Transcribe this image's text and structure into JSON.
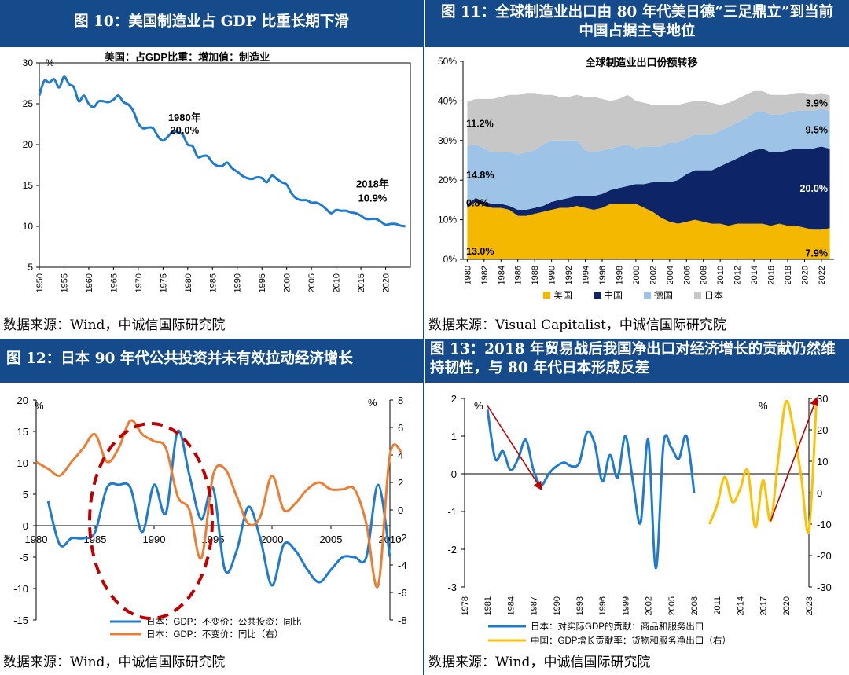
{
  "panels": [
    {
      "id": "fig10",
      "header": "图 10：美国制造业占 GDP 比重长期下滑",
      "source": "数据来源：Wind，中诚信国际研究院"
    },
    {
      "id": "fig11",
      "header": "图 11：全球制造业出口由 80 年代美日德“三足鼎立”到当前中国占据主导地位",
      "source": "数据来源：Visual Capitalist，中诚信国际研究院"
    },
    {
      "id": "fig12",
      "header": "图 12：日本 90 年代公共投资并未有效拉动经济增长",
      "source": "数据来源：Wind，中诚信国际研究院"
    },
    {
      "id": "fig13",
      "header": "图 13：2018 年贸易战后我国净出口对经济增长的贡献仍然维持韧性，与 80 年代日本形成反差",
      "source": "数据来源：Wind，中诚信国际研究院"
    }
  ],
  "chart_data": [
    {
      "type": "line",
      "title": "美国：占GDP比重：增加值：制造业",
      "ylabel": "%",
      "ylim": [
        5,
        30
      ],
      "yticks": [
        5,
        10,
        15,
        20,
        25,
        30
      ],
      "xlim": [
        1950,
        2025
      ],
      "xticks": [
        1950,
        1955,
        1960,
        1965,
        1970,
        1975,
        1980,
        1985,
        1990,
        1995,
        2000,
        2005,
        2010,
        2015,
        2020
      ],
      "color": "#1f7bd0",
      "x": [
        1950,
        1951,
        1952,
        1953,
        1954,
        1955,
        1956,
        1957,
        1958,
        1959,
        1960,
        1961,
        1962,
        1963,
        1964,
        1965,
        1966,
        1967,
        1968,
        1969,
        1970,
        1971,
        1972,
        1973,
        1974,
        1975,
        1976,
        1977,
        1978,
        1979,
        1980,
        1981,
        1982,
        1983,
        1984,
        1985,
        1986,
        1987,
        1988,
        1989,
        1990,
        1991,
        1992,
        1993,
        1994,
        1995,
        1996,
        1997,
        1998,
        1999,
        2000,
        2001,
        2002,
        2003,
        2004,
        2005,
        2006,
        2007,
        2008,
        2009,
        2010,
        2011,
        2012,
        2013,
        2014,
        2015,
        2016,
        2017,
        2018,
        2019,
        2020,
        2021,
        2022,
        2023,
        2024
      ],
      "values": [
        26.0,
        27.8,
        27.6,
        28.0,
        27.0,
        28.3,
        27.4,
        27.0,
        25.3,
        26.0,
        25.0,
        24.6,
        25.3,
        25.3,
        25.2,
        25.5,
        26.0,
        25.2,
        24.9,
        24.1,
        22.6,
        22.0,
        22.1,
        22.0,
        21.0,
        20.5,
        21.0,
        21.6,
        21.5,
        21.2,
        20.0,
        19.8,
        18.5,
        18.6,
        18.6,
        17.8,
        17.4,
        17.4,
        17.8,
        17.1,
        16.7,
        16.2,
        15.9,
        15.8,
        16.0,
        15.9,
        15.4,
        16.2,
        15.8,
        15.4,
        15.1,
        14.0,
        13.4,
        13.2,
        13.2,
        12.9,
        12.9,
        12.6,
        12.1,
        11.6,
        12.0,
        11.9,
        11.9,
        11.7,
        11.6,
        11.3,
        10.9,
        10.9,
        10.9,
        10.6,
        10.2,
        10.3,
        10.3,
        10.1,
        10.0
      ],
      "annotations": [
        {
          "label": "1980年",
          "value_label": "20.0%",
          "x": 1980,
          "y": 20.0
        },
        {
          "label": "2018年",
          "value_label": "10.9%",
          "x": 2018,
          "y": 10.9
        }
      ]
    },
    {
      "type": "area",
      "stacked": true,
      "title": "全球制造业出口份额转移",
      "ylim": [
        0,
        50
      ],
      "yticks": [
        "0%",
        "10%",
        "20%",
        "30%",
        "40%",
        "50%"
      ],
      "x": [
        1980,
        1981,
        1982,
        1983,
        1984,
        1985,
        1986,
        1987,
        1988,
        1989,
        1990,
        1991,
        1992,
        1993,
        1994,
        1995,
        1996,
        1997,
        1998,
        1999,
        2000,
        2001,
        2002,
        2003,
        2004,
        2005,
        2006,
        2007,
        2008,
        2009,
        2010,
        2011,
        2012,
        2013,
        2014,
        2015,
        2016,
        2017,
        2018,
        2019,
        2020,
        2021,
        2022,
        2023
      ],
      "xticks": [
        1980,
        1982,
        1984,
        1986,
        1988,
        1990,
        1992,
        1994,
        1996,
        1998,
        2000,
        2002,
        2004,
        2006,
        2008,
        2010,
        2012,
        2014,
        2016,
        2018,
        2020,
        2022
      ],
      "series": [
        {
          "name": "美国",
          "color": "#f5b800",
          "values": [
            13.0,
            14.5,
            13.5,
            13.0,
            13.0,
            12.5,
            11.0,
            11.0,
            11.5,
            12.0,
            12.5,
            13.0,
            13.0,
            13.5,
            13.0,
            12.5,
            13.0,
            14.0,
            14.0,
            14.0,
            14.0,
            13.0,
            12.0,
            10.5,
            9.5,
            9.0,
            9.5,
            10.0,
            9.5,
            9.0,
            9.0,
            8.5,
            9.0,
            9.0,
            9.0,
            9.0,
            8.5,
            9.0,
            8.5,
            8.5,
            8.0,
            7.5,
            7.5,
            7.9
          ]
        },
        {
          "name": "中国",
          "color": "#0d2467",
          "values": [
            0.8,
            1.0,
            1.0,
            1.0,
            1.0,
            1.0,
            1.5,
            1.5,
            1.5,
            1.5,
            2.0,
            2.0,
            2.5,
            2.5,
            3.0,
            3.5,
            3.5,
            3.5,
            4.0,
            4.5,
            5.0,
            6.0,
            7.5,
            9.0,
            10.0,
            11.0,
            12.0,
            12.5,
            13.0,
            13.5,
            14.5,
            16.0,
            16.5,
            17.5,
            18.5,
            19.0,
            18.5,
            18.0,
            19.0,
            19.5,
            20.0,
            20.5,
            21.0,
            20.0
          ]
        },
        {
          "name": "德国",
          "color": "#9dc3e6",
          "values": [
            14.8,
            13.5,
            13.5,
            13.0,
            13.0,
            13.5,
            14.0,
            14.5,
            14.5,
            15.5,
            15.5,
            15.0,
            14.5,
            14.0,
            11.5,
            11.0,
            11.0,
            10.5,
            10.5,
            10.5,
            9.0,
            9.5,
            9.0,
            9.0,
            10.0,
            9.5,
            9.0,
            9.0,
            9.0,
            9.0,
            9.0,
            9.0,
            9.0,
            9.0,
            9.5,
            9.5,
            9.5,
            9.5,
            9.5,
            9.5,
            9.5,
            9.5,
            9.5,
            9.5
          ]
        },
        {
          "name": "日本",
          "color": "#c7c7c7",
          "values": [
            11.2,
            11.5,
            12.5,
            13.5,
            14.0,
            14.5,
            15.0,
            15.0,
            14.5,
            12.5,
            11.5,
            11.0,
            11.0,
            11.5,
            13.5,
            14.0,
            13.0,
            12.0,
            12.0,
            12.5,
            12.0,
            11.0,
            10.5,
            10.5,
            9.5,
            9.5,
            9.0,
            8.5,
            8.5,
            8.0,
            6.5,
            6.0,
            6.0,
            6.0,
            5.5,
            5.0,
            5.0,
            5.0,
            4.5,
            4.5,
            4.5,
            4.0,
            4.0,
            3.9
          ]
        }
      ],
      "value_labels": [
        {
          "text": "13.0%",
          "series": "美国",
          "x": 1980
        },
        {
          "text": "0.8%",
          "series": "中国",
          "x": 1980
        },
        {
          "text": "14.8%",
          "series": "德国",
          "x": 1980
        },
        {
          "text": "11.2%",
          "series": "日本",
          "x": 1980
        },
        {
          "text": "7.9%",
          "series": "美国",
          "x": 2023
        },
        {
          "text": "20.0%",
          "series": "中国",
          "x": 2023
        },
        {
          "text": "9.5%",
          "series": "德国",
          "x": 2023
        },
        {
          "text": "3.9%",
          "series": "日本",
          "x": 2023
        }
      ],
      "legend": "bottom"
    },
    {
      "type": "line",
      "dual_axis": true,
      "left_unit": "%",
      "right_unit": "%",
      "ylim_left": [
        -15,
        20
      ],
      "yticks_left": [
        -15,
        -10,
        -5,
        0,
        5,
        10,
        15,
        20
      ],
      "ylim_right": [
        -8,
        8
      ],
      "yticks_right": [
        -8,
        -6,
        -4,
        -2,
        0,
        2,
        4,
        6,
        8
      ],
      "xlim": [
        1980,
        2010
      ],
      "xticks": [
        1980,
        1985,
        1990,
        1995,
        2000,
        2005,
        2010
      ],
      "series": [
        {
          "name": "日本：GDP：不变价：公共投资：同比",
          "axis": "left",
          "color": "#1f7bd0",
          "x": [
            1981,
            1982,
            1983,
            1984,
            1985,
            1986,
            1987,
            1988,
            1989,
            1990,
            1991,
            1992,
            1993,
            1994,
            1995,
            1996,
            1997,
            1998,
            1999,
            2000,
            2001,
            2002,
            2003,
            2004,
            2005,
            2006,
            2007,
            2008,
            2009,
            2010
          ],
          "values": [
            4.0,
            -3.0,
            -2.0,
            -2.0,
            -1.0,
            6.0,
            6.5,
            6.0,
            -1.0,
            6.5,
            2.0,
            15.0,
            8.0,
            1.0,
            6.0,
            -7.0,
            -4.0,
            3.0,
            -2.0,
            -9.5,
            -3.0,
            -4.0,
            -7.0,
            -9.0,
            -7.0,
            -5.0,
            -5.0,
            -5.0,
            6.5,
            -5.0
          ]
        },
        {
          "name": "日本：GDP：不变价：同比（右）",
          "axis": "right",
          "color": "#ed7d31",
          "x": [
            1980,
            1981,
            1982,
            1983,
            1984,
            1985,
            1986,
            1987,
            1988,
            1989,
            1990,
            1991,
            1992,
            1993,
            1994,
            1995,
            1996,
            1997,
            1998,
            1999,
            2000,
            2001,
            2002,
            2003,
            2004,
            2005,
            2006,
            2007,
            2008,
            2009,
            2010,
            2011
          ],
          "values": [
            3.5,
            3.0,
            2.5,
            3.5,
            4.5,
            5.5,
            3.5,
            4.5,
            6.5,
            5.5,
            5.0,
            4.5,
            1.0,
            0.0,
            -3.5,
            2.5,
            3.0,
            1.0,
            -1.0,
            -0.5,
            2.5,
            0.0,
            0.5,
            1.5,
            2.0,
            1.5,
            1.5,
            1.5,
            -1.0,
            -5.5,
            4.0,
            4.2
          ]
        }
      ],
      "legend": "bottom"
    },
    {
      "type": "line",
      "dual_axis": true,
      "left_unit": "%",
      "right_unit": "%",
      "ylim_left": [
        -3,
        2
      ],
      "yticks_left": [
        -3,
        -2,
        -1,
        0,
        1,
        2
      ],
      "ylim_right": [
        -30,
        30
      ],
      "yticks_right": [
        -30,
        -20,
        -10,
        0,
        10,
        20,
        30
      ],
      "xlim": [
        1978,
        2023
      ],
      "xticks": [
        1978,
        1981,
        1984,
        1987,
        1990,
        1993,
        1996,
        1999,
        2002,
        2005,
        2008,
        2011,
        2014,
        2017,
        2020,
        2023
      ],
      "series": [
        {
          "name": "日本：对实际GDP的贡献：商品和服务出口",
          "axis": "left",
          "color": "#1f7bd0",
          "x": [
            1981,
            1982,
            1983,
            1984,
            1985,
            1986,
            1987,
            1988,
            1989,
            1990,
            1991,
            1992,
            1993,
            1994,
            1995,
            1996,
            1997,
            1998,
            1999,
            2000,
            2001,
            2002,
            2003,
            2004,
            2005,
            2006,
            2007,
            2008
          ],
          "values": [
            1.7,
            0.4,
            0.6,
            0.1,
            0.4,
            0.9,
            0.1,
            -0.3,
            0.0,
            0.2,
            0.3,
            0.2,
            0.3,
            1.1,
            0.8,
            -0.2,
            0.5,
            -0.1,
            1.0,
            -0.2,
            -1.3,
            0.9,
            -2.5,
            0.8,
            0.7,
            0.4,
            1.0,
            -0.5
          ]
        },
        {
          "name": "中国：GDP增长贡献率：货物和服务净出口（右）",
          "axis": "right",
          "color": "#ffc000",
          "x": [
            2010,
            2011,
            2012,
            2013,
            2014,
            2015,
            2016,
            2017,
            2018,
            2019,
            2020,
            2021,
            2022,
            2023,
            2024
          ],
          "values": [
            -10.0,
            -4.0,
            5.0,
            -3.0,
            1.0,
            7.0,
            -11.0,
            4.0,
            -9.0,
            11.0,
            29.0,
            20.0,
            5.0,
            -12.0,
            30.0
          ]
        }
      ],
      "arrows": [
        {
          "from": [
            1981,
            1.8
          ],
          "to": [
            1988,
            -0.4
          ],
          "axis": "left"
        },
        {
          "from": [
            2018,
            -9.0
          ],
          "to": [
            2024,
            30.0
          ],
          "axis": "right"
        }
      ],
      "annotation_shapes": [],
      "legend": "bottom"
    }
  ]
}
